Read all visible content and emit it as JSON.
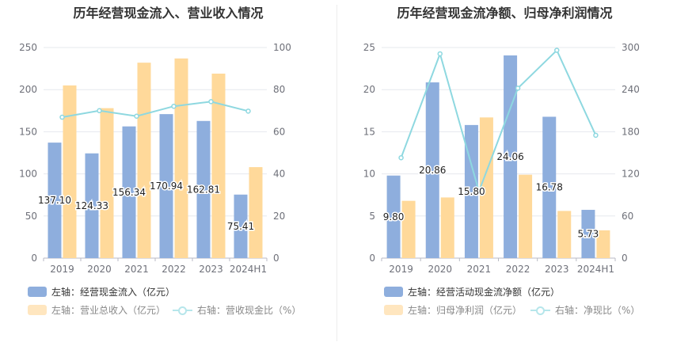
{
  "colors": {
    "bar_left": "#8eaedd",
    "bar_right": "#ffd99a",
    "line": "#8ed8e0"
  },
  "chart_data": [
    {
      "type": "bar",
      "title": "历年经营现金流入、营业收入情况",
      "categories": [
        "2019",
        "2020",
        "2021",
        "2022",
        "2023",
        "2024H1"
      ],
      "ylim_left": [
        0,
        250
      ],
      "yticks_left": [
        0,
        50,
        100,
        150,
        200,
        250
      ],
      "ylim_right": [
        0,
        100
      ],
      "yticks_right": [
        0,
        20,
        40,
        60,
        80,
        100
      ],
      "grid": true,
      "legend_position": "bottom",
      "series": [
        {
          "name": "左轴：经营现金流入（亿元）",
          "type": "bar",
          "axis": "left",
          "values": [
            137.1,
            124.33,
            156.34,
            170.94,
            162.81,
            75.41
          ],
          "labels": [
            "137.10",
            "124.33",
            "156.34",
            "170.94",
            "162.81",
            "75.41"
          ]
        },
        {
          "name": "左轴：营业总收入（亿元）",
          "type": "bar",
          "axis": "left",
          "values": [
            205,
            178,
            232,
            237,
            219,
            108
          ]
        },
        {
          "name": "右轴：营收现金比（%）",
          "type": "line",
          "axis": "right",
          "values": [
            66.9,
            70.0,
            67.4,
            72.1,
            74.3,
            69.8
          ]
        }
      ]
    },
    {
      "type": "bar",
      "title": "历年经营现金流净额、归母净利润情况",
      "categories": [
        "2019",
        "2020",
        "2021",
        "2022",
        "2023",
        "2024H1"
      ],
      "ylim_left": [
        0,
        25
      ],
      "yticks_left": [
        0,
        5,
        10,
        15,
        20,
        25
      ],
      "ylim_right": [
        0,
        300
      ],
      "yticks_right": [
        0,
        60,
        120,
        180,
        240,
        300
      ],
      "grid": true,
      "legend_position": "bottom",
      "series": [
        {
          "name": "左轴：经营活动现金流净额（亿元）",
          "type": "bar",
          "axis": "left",
          "values": [
            9.8,
            20.86,
            15.8,
            24.06,
            16.78,
            5.73
          ],
          "labels": [
            "9.80",
            "20.86",
            "15.80",
            "24.06",
            "16.78",
            "5.73"
          ]
        },
        {
          "name": "左轴：归母净利润（亿元）",
          "type": "bar",
          "axis": "left",
          "values": [
            6.8,
            7.2,
            16.7,
            9.9,
            5.6,
            3.3
          ]
        },
        {
          "name": "右轴：净现比（%）",
          "type": "line",
          "axis": "right",
          "values": [
            143,
            291,
            95,
            242,
            296,
            175
          ]
        }
      ]
    }
  ]
}
